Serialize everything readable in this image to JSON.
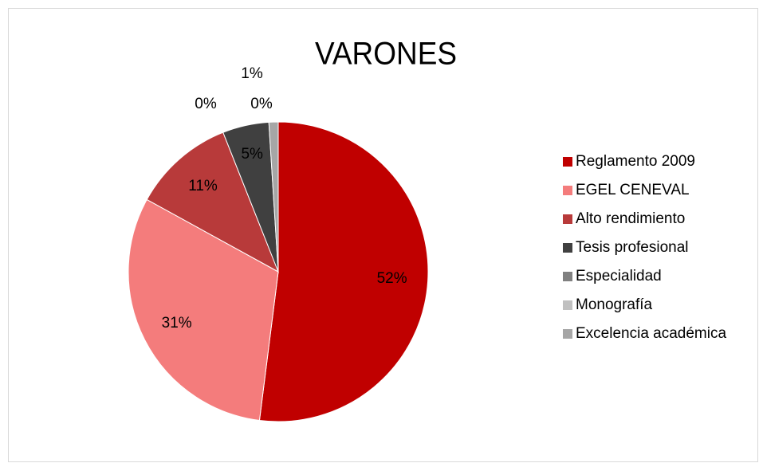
{
  "chart_data": {
    "type": "pie",
    "title": "VARONES",
    "categories": [
      "Reglamento 2009",
      "EGEL CENEVAL",
      "Alto rendimiento",
      "Tesis profesional",
      "Especialidad",
      "Monografía",
      "Excelencia académica"
    ],
    "values": [
      52,
      31,
      11,
      5,
      0,
      0,
      1
    ],
    "value_labels": [
      "52%",
      "31%",
      "11%",
      "5%",
      "0%",
      "0%",
      "1%"
    ],
    "colors": [
      "#c00000",
      "#f47c7c",
      "#b83a3a",
      "#404040",
      "#808080",
      "#c0c0c0",
      "#a6a6a6"
    ],
    "legend": "right"
  }
}
